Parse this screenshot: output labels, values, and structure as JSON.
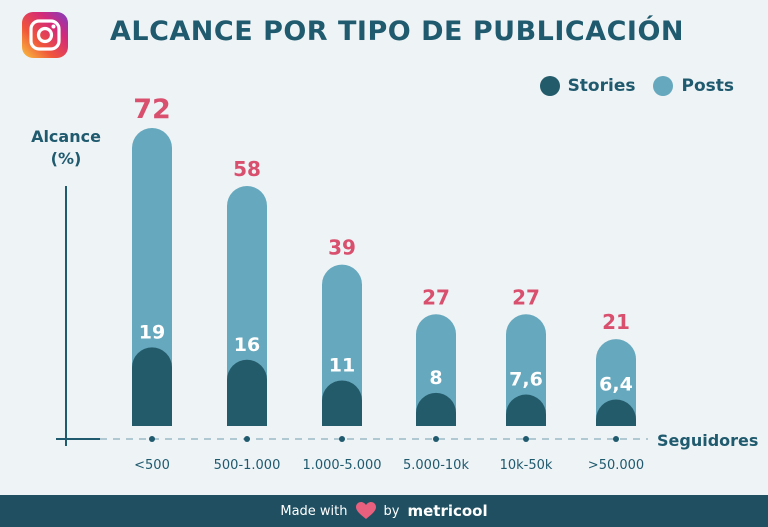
{
  "title": "ALCANCE POR TIPO DE PUBLICACIÓN",
  "logo_icon": "instagram-icon",
  "colors": {
    "stories": "#245b6b",
    "posts": "#66a8bd",
    "total_label": "#d9506f",
    "axis": "#1f5a6e",
    "footer": "#1f4f61"
  },
  "footer": {
    "made_with": "Made with",
    "by": "by",
    "brand": "metricool",
    "heart_icon": "heart-icon"
  },
  "chart_data": {
    "type": "bar",
    "title": "ALCANCE POR TIPO DE PUBLICACIÓN",
    "ylabel_line1": "Alcance",
    "ylabel_line2": "(%)",
    "xlabel": "Seguidores",
    "legend": [
      "Stories",
      "Posts"
    ],
    "legend_placement": "top-right",
    "categories": [
      "<500",
      "500-1.000",
      "1.000-5.000",
      "5.000-10k",
      "10k-50k",
      ">50.000"
    ],
    "series": [
      {
        "name": "Stories",
        "values": [
          19,
          16,
          11,
          8,
          7.6,
          6.4
        ],
        "labels": [
          "19",
          "16",
          "11",
          "8",
          "7,6",
          "6,4"
        ]
      },
      {
        "name": "Posts",
        "values": [
          72,
          58,
          39,
          27,
          27,
          21
        ],
        "labels": [
          "72",
          "58",
          "39",
          "27",
          "27",
          "21"
        ]
      }
    ],
    "ylim": [
      0,
      72
    ],
    "grid": false
  }
}
